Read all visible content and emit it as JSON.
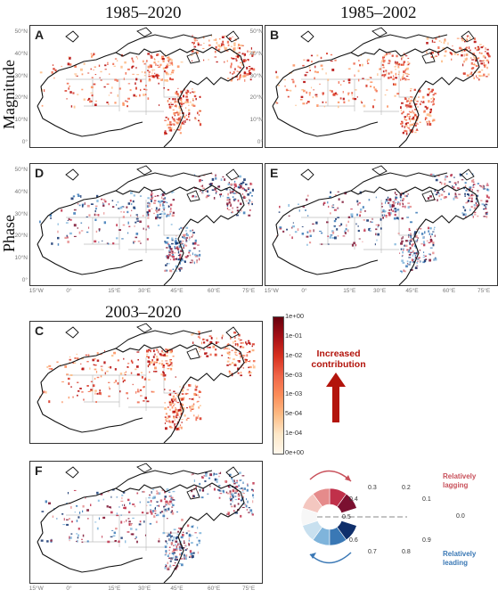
{
  "column_titles": {
    "left_top": "1985–2020",
    "right_top": "1985–2002",
    "middle": "2003–2020"
  },
  "row_titles": {
    "magnitude": "Magnitude",
    "phase": "Phase"
  },
  "panels": {
    "A": "A",
    "B": "B",
    "C": "C",
    "D": "D",
    "E": "E",
    "F": "F"
  },
  "lat_ticks": [
    "50°N",
    "40°N",
    "30°N",
    "20°N",
    "10°N",
    "0°"
  ],
  "lon_ticks": [
    "15°W",
    "0°",
    "15°E",
    "30°E",
    "45°E",
    "60°E",
    "75°E"
  ],
  "colorbar": {
    "ticks": [
      "1e+00",
      "1e-01",
      "1e-02",
      "5e-03",
      "1e-03",
      "5e-04",
      "1e-04",
      "0e+00"
    ],
    "colors": [
      "#67000d",
      "#a50f15",
      "#d7301f",
      "#ef6548",
      "#fc8d59",
      "#fdbb84",
      "#fee8c8",
      "#fff7ec"
    ],
    "annotation_line1": "Increased",
    "annotation_line2": "contribution"
  },
  "phase_wheel": {
    "labels": [
      "0.0",
      "0.1",
      "0.2",
      "0.3",
      "0.4",
      "0.5",
      "0.6",
      "0.7",
      "0.8",
      "0.9"
    ],
    "colors": [
      "#ffffff",
      "#7b1030",
      "#c0304a",
      "#e58b8b",
      "#f4c7c0",
      "#f7f7f7",
      "#c8e0ef",
      "#7fb4db",
      "#3a78b5",
      "#0f2f6b"
    ],
    "lagging_line1": "Relatively",
    "lagging_line2": "lagging",
    "leading_line1": "Relatively",
    "leading_line2": "leading"
  }
}
